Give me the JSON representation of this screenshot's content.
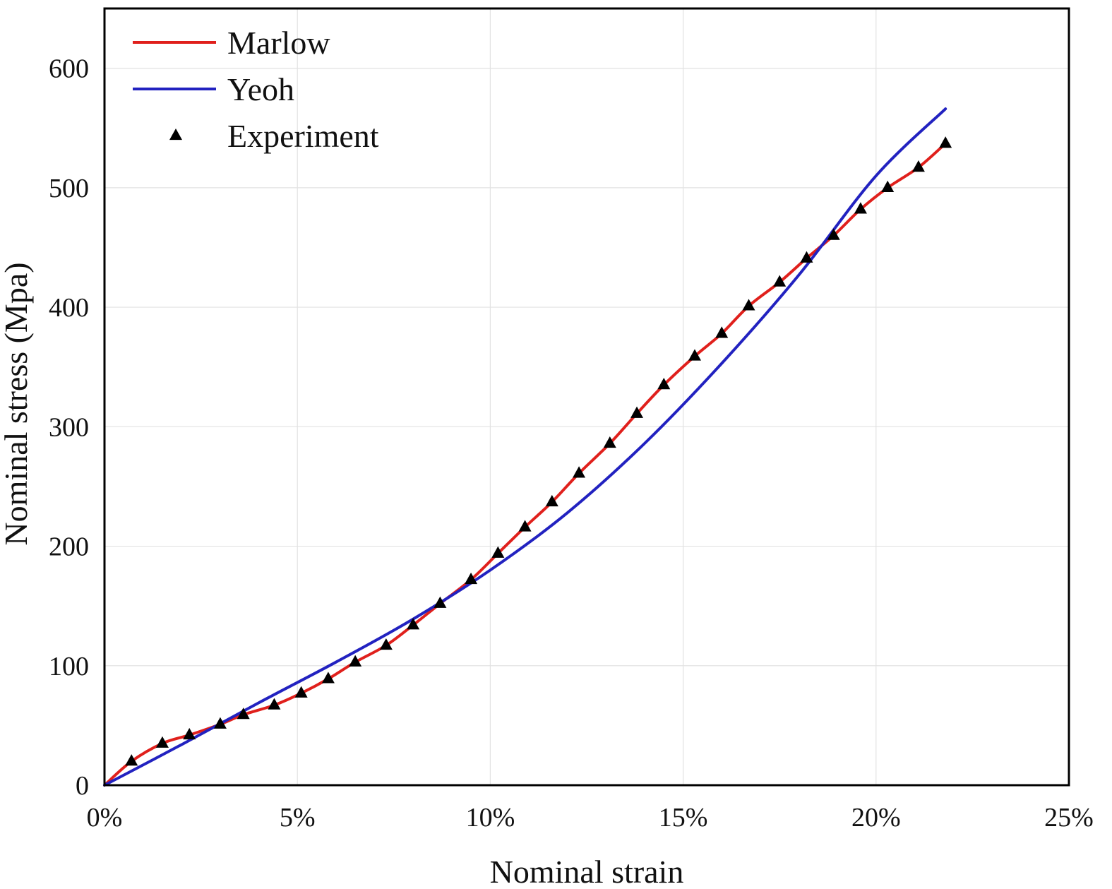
{
  "chart_data": {
    "type": "line",
    "title": "",
    "xlabel": "Nominal strain",
    "ylabel": "Nominal stress (Mpa)",
    "xlim": [
      0,
      25
    ],
    "ylim": [
      0,
      650
    ],
    "x_ticks": [
      0,
      5,
      10,
      15,
      20,
      25
    ],
    "x_tick_labels": [
      "0%",
      "5%",
      "10%",
      "15%",
      "20%",
      "25%"
    ],
    "y_ticks": [
      0,
      100,
      200,
      300,
      400,
      500,
      600
    ],
    "y_tick_labels": [
      "0",
      "100",
      "200",
      "300",
      "400",
      "500",
      "600"
    ],
    "grid": true,
    "legend_position": "top-left",
    "series": [
      {
        "name": "Marlow",
        "kind": "line",
        "color": "#e0201c",
        "x": [
          0,
          0.7,
          1.5,
          2.2,
          3.0,
          3.6,
          4.4,
          5.1,
          5.8,
          6.5,
          7.3,
          8.0,
          8.7,
          9.5,
          10.2,
          10.9,
          11.6,
          12.3,
          13.1,
          13.8,
          14.5,
          15.3,
          16.0,
          16.7,
          17.5,
          18.2,
          18.9,
          19.6,
          20.3,
          21.1,
          21.8
        ],
        "y": [
          0,
          20,
          35,
          42,
          51,
          59,
          67,
          77,
          89,
          103,
          117,
          134,
          152,
          172,
          194,
          216,
          237,
          261,
          286,
          311,
          335,
          359,
          378,
          401,
          421,
          441,
          460,
          482,
          500,
          517,
          537
        ]
      },
      {
        "name": "Yeoh",
        "kind": "line",
        "color": "#2222c0",
        "x": [
          0,
          2,
          4,
          6,
          8,
          10,
          12,
          14,
          16,
          18,
          20,
          21.8
        ],
        "y": [
          0,
          34,
          69,
          103,
          139,
          180,
          228,
          286,
          353,
          427,
          510,
          566
        ]
      },
      {
        "name": "Experiment",
        "kind": "scatter",
        "marker": "triangle",
        "color": "#000000",
        "x": [
          0.7,
          1.5,
          2.2,
          3.0,
          3.6,
          4.4,
          5.1,
          5.8,
          6.5,
          7.3,
          8.0,
          8.7,
          9.5,
          10.2,
          10.9,
          11.6,
          12.3,
          13.1,
          13.8,
          14.5,
          15.3,
          16.0,
          16.7,
          17.5,
          18.2,
          18.9,
          19.6,
          20.3,
          21.1,
          21.8
        ],
        "y": [
          20,
          35,
          42,
          51,
          59,
          67,
          77,
          89,
          103,
          117,
          134,
          152,
          172,
          194,
          216,
          237,
          261,
          286,
          311,
          335,
          359,
          378,
          401,
          421,
          441,
          460,
          482,
          500,
          517,
          537
        ]
      }
    ]
  }
}
